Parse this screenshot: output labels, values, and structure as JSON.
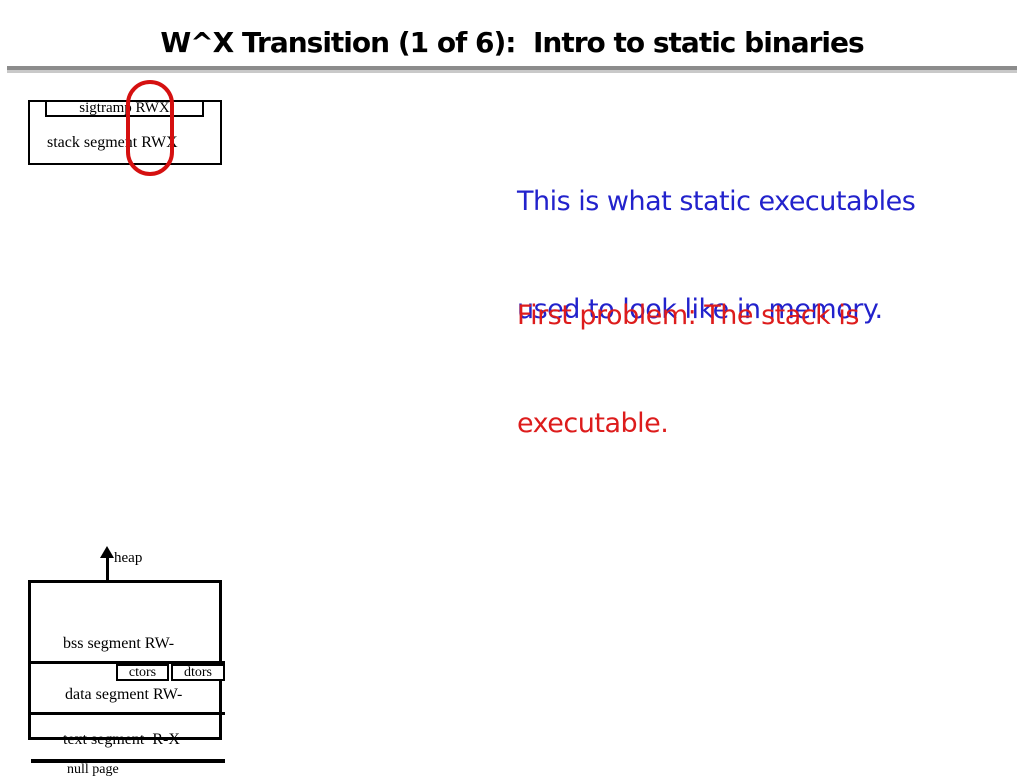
{
  "slide": {
    "title": "W^X Transition (1 of 6):  Intro to static binaries"
  },
  "narration": {
    "intro_line1": "This is what static executables",
    "intro_line2": "used to look like in memory.",
    "problem_line1": "First problem: The stack is",
    "problem_line2": "executable."
  },
  "stack_diagram": {
    "sigtramp_label": "sigtramp RWX",
    "stack_label": "stack segment RWX"
  },
  "memory_diagram": {
    "heap_label": "heap",
    "bss_label": "bss segment RW-",
    "ctors_label": "ctors",
    "dtors_label": "dtors",
    "data_label": "data segment RW-",
    "text_label": "text segment  R-X",
    "null_label": "null page"
  },
  "colors": {
    "body_blue": "#2222cc",
    "body_red": "#dd1c1c",
    "annotation_red": "#d51010",
    "rule_dark": "#8c8c8c",
    "rule_light": "#c9c9c9"
  }
}
